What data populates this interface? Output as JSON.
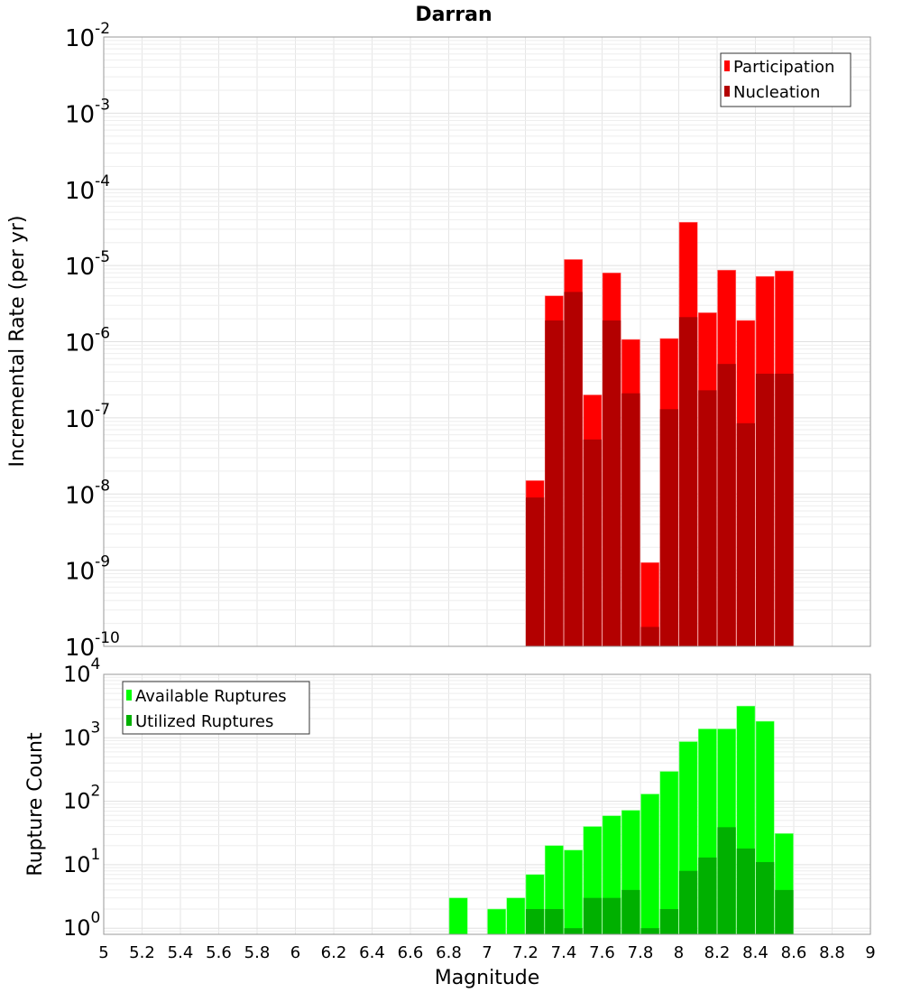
{
  "title": "Darran",
  "colors": {
    "participation": "#ff0000",
    "nucleation": "#b30000",
    "available": "#00ff00",
    "utilized": "#00b000",
    "grid": "#e6e6e6",
    "axis": "#999999"
  },
  "chart_data": [
    {
      "type": "bar",
      "title": "Darran",
      "xlabel": "Magnitude",
      "ylabel": "Incremental Rate (per yr)",
      "yscale": "log",
      "xlim": [
        5,
        9
      ],
      "ylim": [
        1e-10,
        0.01
      ],
      "grid": true,
      "legend_position": "top-right",
      "x_ticks": [
        "5",
        "5.2",
        "5.4",
        "5.6",
        "5.8",
        "6",
        "6.2",
        "6.4",
        "6.6",
        "6.8",
        "7",
        "7.2",
        "7.4",
        "7.6",
        "7.8",
        "8",
        "8.2",
        "8.4",
        "8.6",
        "8.8",
        "9"
      ],
      "y_ticks": [
        {
          "base": "10",
          "exp": "-2"
        },
        {
          "base": "10",
          "exp": "-3"
        },
        {
          "base": "10",
          "exp": "-4"
        },
        {
          "base": "10",
          "exp": "-5"
        },
        {
          "base": "10",
          "exp": "-6"
        },
        {
          "base": "10",
          "exp": "-7"
        },
        {
          "base": "10",
          "exp": "-8"
        },
        {
          "base": "10",
          "exp": "-9"
        },
        {
          "base": "10",
          "exp": "-10"
        }
      ],
      "x": [
        7.25,
        7.35,
        7.45,
        7.55,
        7.65,
        7.75,
        7.85,
        7.95,
        8.05,
        8.15,
        8.25,
        8.35,
        8.45,
        8.55
      ],
      "series": [
        {
          "name": "Participation",
          "values": [
            1.5e-08,
            4e-06,
            1.2e-05,
            2e-07,
            8e-06,
            1.07e-06,
            1.26e-09,
            1.1e-06,
            3.7e-05,
            2.4e-06,
            8.7e-06,
            1.9e-06,
            7.2e-06,
            8.5e-06
          ]
        },
        {
          "name": "Nucleation",
          "values": [
            9e-09,
            1.9e-06,
            4.5e-06,
            5.2e-08,
            1.9e-06,
            2.1e-07,
            1.8e-10,
            1.3e-07,
            2.1e-06,
            2.3e-07,
            5.1e-07,
            8.5e-08,
            3.8e-07,
            3.8e-07
          ]
        }
      ]
    },
    {
      "type": "bar",
      "xlabel": "Magnitude",
      "ylabel": "Rupture Count",
      "yscale": "log",
      "xlim": [
        5,
        9
      ],
      "ylim": [
        0.8,
        10000
      ],
      "grid": true,
      "legend_position": "top-left",
      "y_ticks": [
        {
          "base": "10",
          "exp": "4"
        },
        {
          "base": "10",
          "exp": "3"
        },
        {
          "base": "10",
          "exp": "2"
        },
        {
          "base": "10",
          "exp": "1"
        },
        {
          "base": "10",
          "exp": "0"
        }
      ],
      "x": [
        6.85,
        7.05,
        7.15,
        7.25,
        7.35,
        7.45,
        7.55,
        7.65,
        7.75,
        7.85,
        7.95,
        8.05,
        8.15,
        8.25,
        8.35,
        8.45,
        8.55
      ],
      "series": [
        {
          "name": "Available Ruptures",
          "values": [
            3,
            2,
            3,
            7,
            20,
            17,
            40,
            59,
            72,
            130,
            295,
            870,
            1380,
            1380,
            3160,
            1820,
            31
          ]
        },
        {
          "name": "Utilized Ruptures",
          "values": [
            0,
            0,
            0,
            2,
            2,
            1,
            3,
            3,
            4,
            1,
            2,
            8,
            13,
            39,
            18,
            11,
            4
          ]
        }
      ]
    }
  ]
}
